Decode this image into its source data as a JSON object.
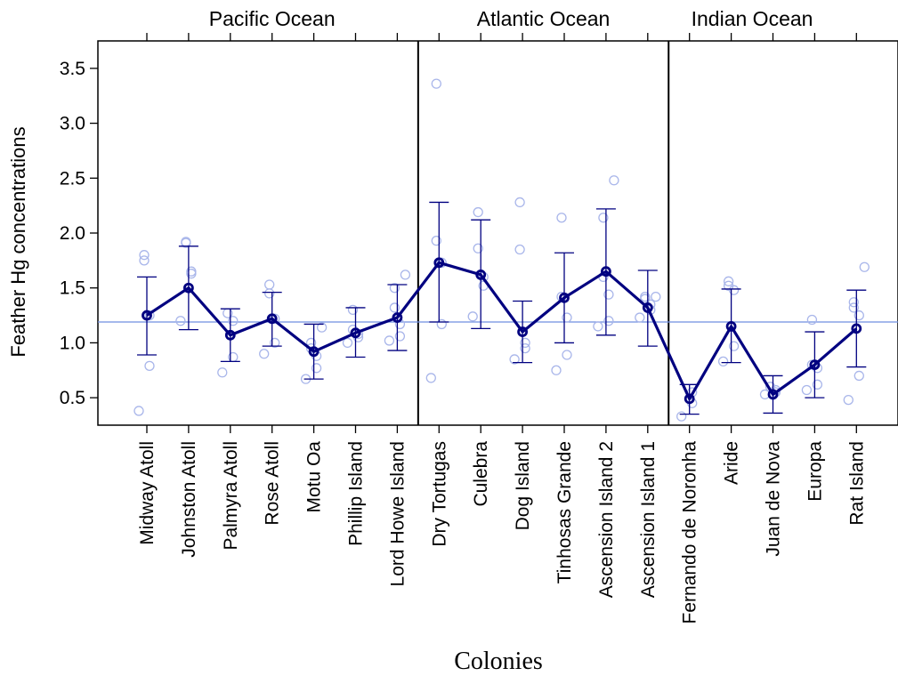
{
  "chart_data": {
    "type": "line",
    "ylabel": "Feather Hg concentrations",
    "xlabel": "Colonies",
    "ylim": [
      0.25,
      3.75
    ],
    "yticks": [
      0.5,
      1.0,
      1.5,
      2.0,
      2.5,
      3.0,
      3.5
    ],
    "ytick_labels": [
      "0.5",
      "1.0",
      "1.5",
      "2.0",
      "2.5",
      "3.0",
      "3.5"
    ],
    "reference_line": 1.19,
    "groups": [
      {
        "name": "Pacific Ocean",
        "start": 0,
        "end": 6
      },
      {
        "name": "Atlantic Ocean",
        "start": 7,
        "end": 12
      },
      {
        "name": "Indian Ocean",
        "start": 13,
        "end": 16
      }
    ],
    "categories": [
      "Midway Atoll",
      "Johnston Atoll",
      "Palmyra Atoll",
      "Rose Atoll",
      "Motu Oa",
      "Phillip Island",
      "Lord Howe Island",
      "Dry Tortugas",
      "Culebra",
      "Dog Island",
      "Tinhosas Grande",
      "Ascension Island 2",
      "Ascension Island 1",
      "Fernando de Noronha",
      "Aride",
      "Juan de Nova",
      "Europa",
      "Rat Island"
    ],
    "series": [
      {
        "means": [
          1.25,
          1.5,
          1.07,
          1.22,
          0.92,
          1.09,
          1.23,
          1.73,
          1.62,
          1.1,
          1.41,
          1.65,
          1.32,
          0.49,
          1.15,
          0.53,
          0.8,
          1.13
        ],
        "lower": [
          0.89,
          1.12,
          0.83,
          0.97,
          0.67,
          0.87,
          0.93,
          1.19,
          1.13,
          0.82,
          1.0,
          1.07,
          0.97,
          0.35,
          0.82,
          0.36,
          0.5,
          0.78
        ],
        "upper": [
          1.6,
          1.88,
          1.31,
          1.46,
          1.17,
          1.32,
          1.53,
          2.28,
          2.12,
          1.38,
          1.82,
          2.22,
          1.66,
          0.62,
          1.49,
          0.7,
          1.1,
          1.48
        ]
      }
    ],
    "points": [
      [
        0.38,
        0.79,
        1.25,
        1.75,
        1.8
      ],
      [
        1.2,
        1.63,
        1.65,
        1.91,
        1.92
      ],
      [
        0.73,
        0.87,
        1.2,
        1.27
      ],
      [
        0.9,
        1.0,
        1.22,
        1.45,
        1.53
      ],
      [
        0.67,
        0.77,
        0.88,
        0.95,
        1.0,
        1.14
      ],
      [
        1.0,
        1.05,
        1.08,
        1.12,
        1.3
      ],
      [
        1.02,
        1.06,
        1.17,
        1.32,
        1.5,
        1.62
      ],
      [
        0.68,
        1.17,
        1.73,
        1.93,
        3.36
      ],
      [
        1.24,
        1.52,
        1.6,
        1.86,
        2.19
      ],
      [
        0.85,
        0.95,
        1.0,
        1.85,
        2.28
      ],
      [
        0.75,
        0.89,
        1.23,
        1.42,
        2.14
      ],
      [
        1.15,
        1.2,
        1.44,
        1.6,
        2.14,
        2.48
      ],
      [
        1.23,
        1.3,
        1.35,
        1.4,
        1.42,
        1.42
      ],
      [
        0.33,
        0.45,
        0.55
      ],
      [
        0.83,
        0.97,
        1.48,
        1.52,
        1.56
      ],
      [
        0.53,
        0.55,
        0.57,
        0.6
      ],
      [
        0.57,
        0.62,
        0.77,
        0.8,
        1.21
      ],
      [
        0.48,
        0.7,
        1.25,
        1.32,
        1.37,
        1.69
      ]
    ],
    "colors": {
      "line": "#000080",
      "points": "#a9b6ea",
      "reference": "#6f8fe0",
      "axis": "#000000"
    }
  }
}
